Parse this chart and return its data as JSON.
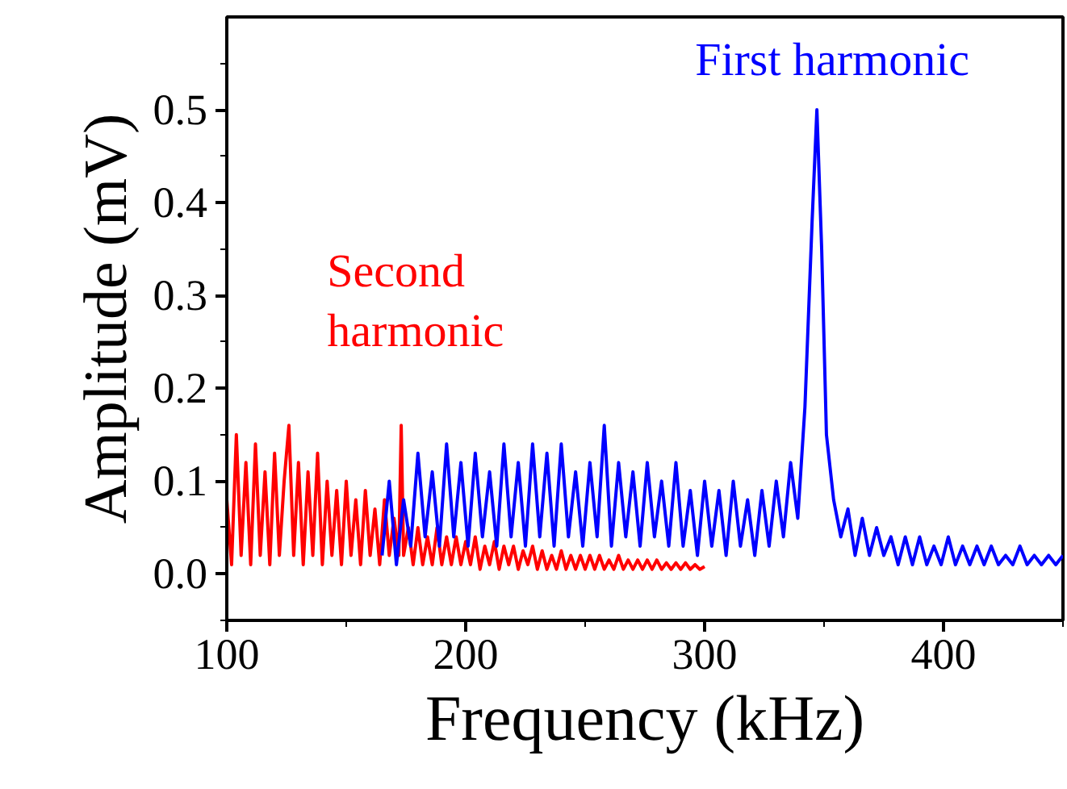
{
  "chart_data": {
    "type": "line",
    "xlabel": "Frequency (kHz)",
    "ylabel": "Amplitude (mV)",
    "xlim": [
      100,
      450
    ],
    "xticks": [
      100,
      200,
      300,
      400
    ],
    "ylim": [
      -0.05,
      0.6
    ],
    "yticks": [
      {
        "value": 0,
        "label": "0.0"
      },
      0.1,
      0.2,
      0.3,
      0.4,
      0.5
    ],
    "grid": false,
    "legend": false,
    "line_style": "solid",
    "series": [
      {
        "name": "Second harmonic",
        "color": "#ff0000",
        "x": [
          100,
          102,
          104,
          106,
          108,
          110,
          112,
          114,
          116,
          118,
          120,
          122,
          124,
          126,
          128,
          130,
          132,
          134,
          136,
          138,
          140,
          142,
          144,
          146,
          148,
          150,
          152,
          154,
          156,
          158,
          160,
          162,
          164,
          166,
          168,
          170,
          172,
          173,
          174,
          176,
          178,
          180,
          182,
          184,
          186,
          188,
          190,
          192,
          194,
          196,
          198,
          200,
          202,
          204,
          206,
          208,
          210,
          212,
          214,
          216,
          218,
          220,
          222,
          224,
          226,
          228,
          230,
          232,
          234,
          236,
          238,
          240,
          242,
          244,
          246,
          248,
          250,
          252,
          254,
          256,
          258,
          260,
          262,
          264,
          266,
          268,
          270,
          272,
          274,
          276,
          278,
          280,
          282,
          284,
          286,
          288,
          290,
          292,
          294,
          296,
          298,
          300
        ],
        "values": [
          0.08,
          0.01,
          0.15,
          0.02,
          0.12,
          0.01,
          0.14,
          0.02,
          0.11,
          0.01,
          0.13,
          0.02,
          0.1,
          0.16,
          0.02,
          0.12,
          0.01,
          0.11,
          0.02,
          0.13,
          0.01,
          0.1,
          0.02,
          0.09,
          0.01,
          0.1,
          0.02,
          0.08,
          0.01,
          0.09,
          0.02,
          0.07,
          0.01,
          0.08,
          0.02,
          0.06,
          0.02,
          0.16,
          0.02,
          0.05,
          0.01,
          0.05,
          0.01,
          0.04,
          0.01,
          0.05,
          0.01,
          0.04,
          0.01,
          0.04,
          0.01,
          0.035,
          0.01,
          0.04,
          0.005,
          0.03,
          0.01,
          0.035,
          0.005,
          0.03,
          0.01,
          0.03,
          0.005,
          0.025,
          0.01,
          0.03,
          0.005,
          0.025,
          0.005,
          0.02,
          0.005,
          0.025,
          0.005,
          0.02,
          0.005,
          0.02,
          0.005,
          0.02,
          0.005,
          0.02,
          0.005,
          0.015,
          0.005,
          0.02,
          0.005,
          0.015,
          0.005,
          0.015,
          0.005,
          0.015,
          0.005,
          0.015,
          0.005,
          0.012,
          0.005,
          0.012,
          0.005,
          0.012,
          0.005,
          0.01,
          0.005,
          0.008
        ]
      },
      {
        "name": "First harmonic",
        "color": "#0000ff",
        "x": [
          165,
          168,
          171,
          174,
          177,
          180,
          183,
          186,
          189,
          192,
          195,
          198,
          201,
          204,
          207,
          210,
          213,
          216,
          219,
          222,
          225,
          228,
          231,
          234,
          237,
          240,
          243,
          246,
          249,
          252,
          255,
          258,
          261,
          264,
          267,
          270,
          273,
          276,
          279,
          282,
          285,
          288,
          291,
          294,
          297,
          300,
          303,
          306,
          309,
          312,
          315,
          318,
          321,
          324,
          327,
          330,
          333,
          336,
          339,
          342,
          345,
          347,
          349,
          351,
          354,
          357,
          360,
          363,
          366,
          369,
          372,
          375,
          378,
          381,
          384,
          387,
          390,
          393,
          396,
          399,
          402,
          405,
          408,
          411,
          414,
          417,
          420,
          423,
          426,
          429,
          432,
          435,
          438,
          441,
          444,
          447,
          450
        ],
        "values": [
          0.02,
          0.1,
          0.01,
          0.08,
          0.03,
          0.13,
          0.04,
          0.11,
          0.03,
          0.14,
          0.04,
          0.12,
          0.03,
          0.13,
          0.04,
          0.11,
          0.03,
          0.14,
          0.04,
          0.12,
          0.03,
          0.14,
          0.04,
          0.13,
          0.03,
          0.14,
          0.04,
          0.11,
          0.03,
          0.12,
          0.04,
          0.16,
          0.03,
          0.12,
          0.04,
          0.11,
          0.03,
          0.12,
          0.04,
          0.1,
          0.03,
          0.12,
          0.03,
          0.09,
          0.02,
          0.1,
          0.03,
          0.09,
          0.02,
          0.1,
          0.03,
          0.08,
          0.02,
          0.09,
          0.03,
          0.1,
          0.04,
          0.12,
          0.06,
          0.18,
          0.38,
          0.5,
          0.35,
          0.15,
          0.08,
          0.04,
          0.07,
          0.02,
          0.06,
          0.02,
          0.05,
          0.02,
          0.04,
          0.01,
          0.04,
          0.01,
          0.04,
          0.01,
          0.03,
          0.01,
          0.04,
          0.01,
          0.03,
          0.01,
          0.03,
          0.01,
          0.03,
          0.01,
          0.02,
          0.01,
          0.03,
          0.01,
          0.02,
          0.01,
          0.02,
          0.01,
          0.02
        ]
      }
    ]
  }
}
